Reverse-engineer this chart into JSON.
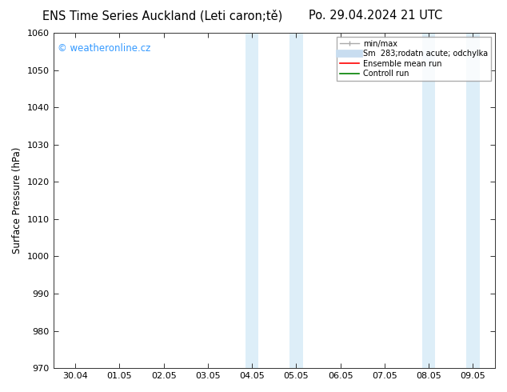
{
  "title_left": "ENS Time Series Auckland (Leti caron;tě)",
  "title_right": "Po. 29.04.2024 21 UTC",
  "ylabel": "Surface Pressure (hPa)",
  "ylim": [
    970,
    1060
  ],
  "yticks": [
    970,
    980,
    990,
    1000,
    1010,
    1020,
    1030,
    1040,
    1050,
    1060
  ],
  "xlabels": [
    "30.04",
    "01.05",
    "02.05",
    "03.05",
    "04.05",
    "05.05",
    "06.05",
    "07.05",
    "08.05",
    "09.05"
  ],
  "x_values": [
    0,
    1,
    2,
    3,
    4,
    5,
    6,
    7,
    8,
    9
  ],
  "shaded_regions": [
    {
      "xmin": 3.85,
      "xmax": 4.15,
      "color": "#ddeef8"
    },
    {
      "xmin": 4.85,
      "xmax": 5.15,
      "color": "#ddeef8"
    },
    {
      "xmin": 7.85,
      "xmax": 8.15,
      "color": "#ddeef8"
    },
    {
      "xmin": 8.85,
      "xmax": 9.15,
      "color": "#ddeef8"
    }
  ],
  "watermark_text": "© weatheronline.cz",
  "watermark_color": "#3399ff",
  "legend_labels": [
    "min/max",
    "Sm  283;rodatn acute; odchylka",
    "Ensemble mean run",
    "Controll run"
  ],
  "legend_colors": [
    "#aaaaaa",
    "#c8ddf0",
    "red",
    "green"
  ],
  "bg_color": "#ffffff",
  "axes_bg_color": "#ffffff",
  "tick_label_fontsize": 8,
  "title_fontsize": 10.5,
  "ylabel_fontsize": 8.5
}
